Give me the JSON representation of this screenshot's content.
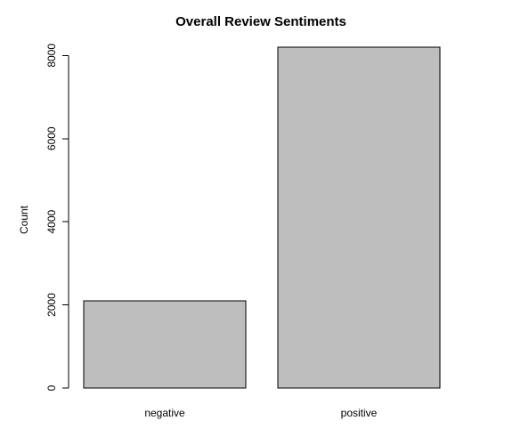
{
  "chart_data": {
    "type": "bar",
    "title": "Overall Review Sentiments",
    "xlabel": "",
    "ylabel": "Count",
    "categories": [
      "negative",
      "positive"
    ],
    "values": [
      2100,
      8200
    ],
    "ylim": [
      0,
      8200
    ],
    "yticks": [
      0,
      2000,
      4000,
      6000,
      8000
    ],
    "bar_fill": "#bebebe",
    "bar_stroke": "#000000",
    "grid": false,
    "legend": "none"
  }
}
